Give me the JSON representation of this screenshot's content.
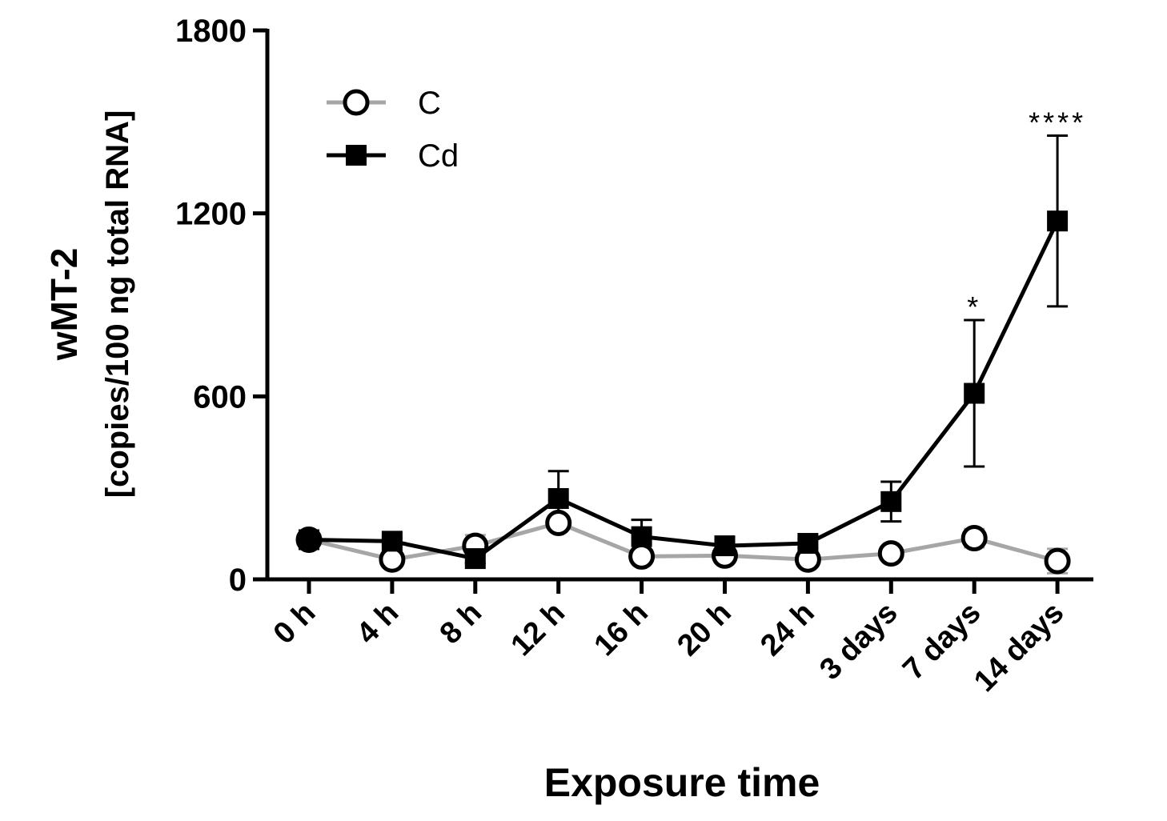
{
  "chart_data": {
    "type": "line",
    "xlabel": "Exposure time",
    "ylabel": "wMT-2",
    "ylabel_sub": "[copies/100 ng total RNA]",
    "ylim": [
      0,
      1800
    ],
    "yticks": [
      "0",
      "600",
      "1200",
      "1800"
    ],
    "categories": [
      "0 h",
      "4 h",
      "8 h",
      "12 h",
      "16 h",
      "20 h",
      "24 h",
      "3 days",
      "7 days",
      "14 days"
    ],
    "series": [
      {
        "name": "C",
        "color": "#a6a6a6",
        "marker": "open-circle",
        "values": [
          130,
          65,
          110,
          185,
          75,
          78,
          65,
          85,
          135,
          60
        ],
        "errors": [
          18,
          15,
          35,
          15,
          12,
          12,
          12,
          18,
          30,
          40
        ]
      },
      {
        "name": "Cd",
        "color": "#000000",
        "marker": "filled-square",
        "values": [
          130,
          125,
          68,
          265,
          140,
          110,
          118,
          255,
          610,
          1175
        ],
        "errors": [
          15,
          12,
          15,
          90,
          55,
          15,
          15,
          65,
          240,
          280
        ]
      }
    ],
    "annotations": [
      {
        "category": "7 days",
        "text": "*"
      },
      {
        "category": "14 days",
        "text": "****"
      }
    ],
    "legend": {
      "position": "top-left"
    },
    "grid": false
  }
}
